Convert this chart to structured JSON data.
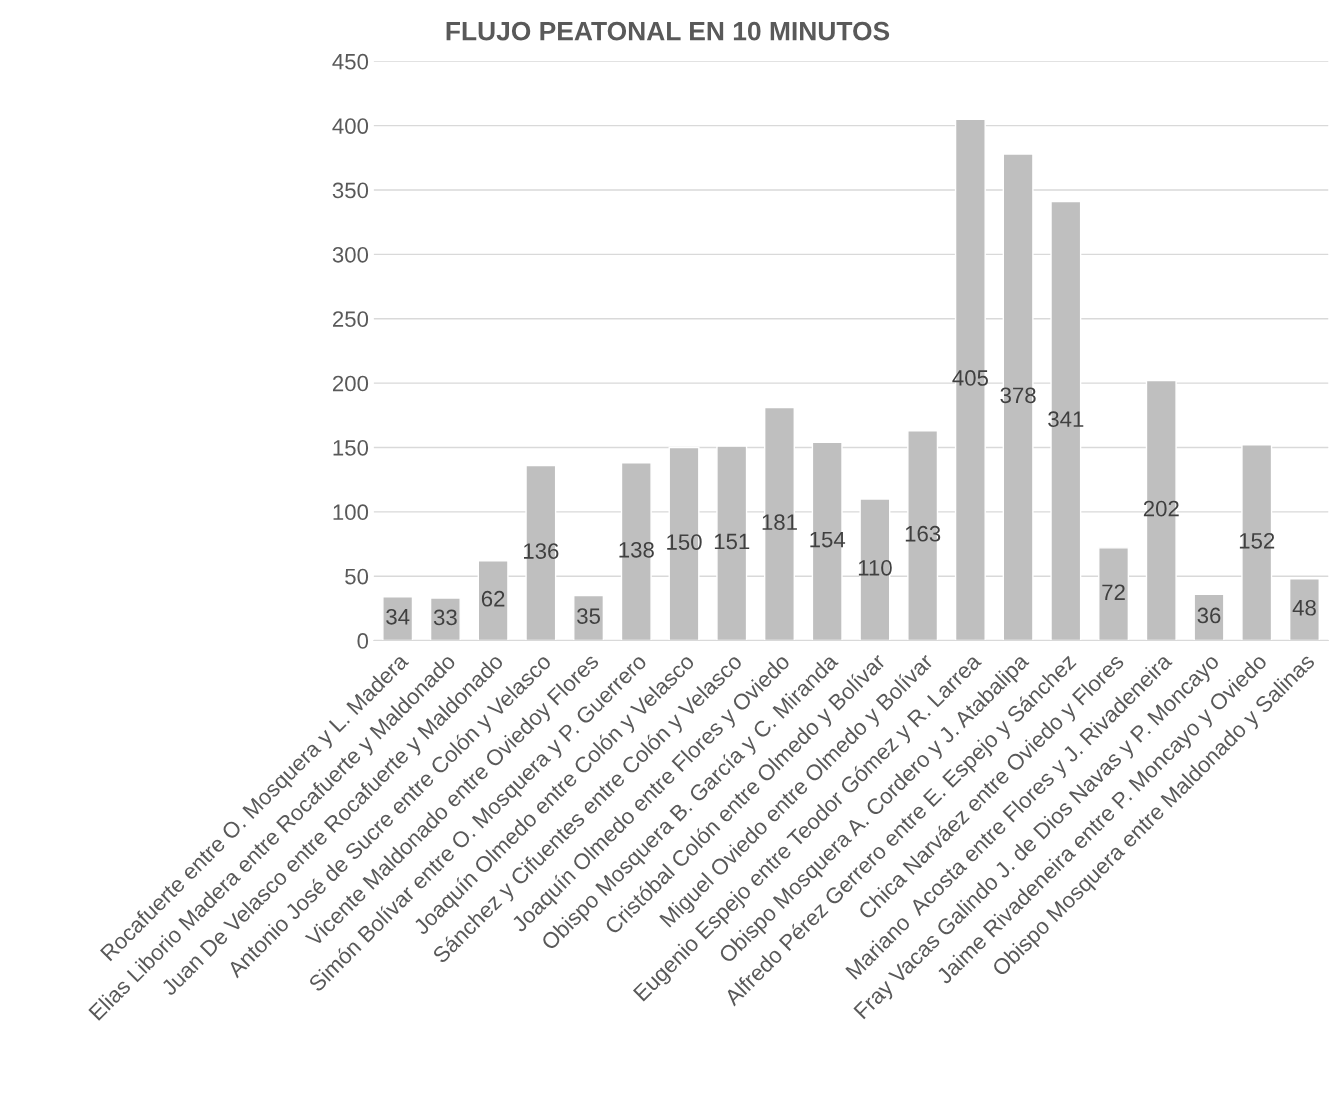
{
  "chart_data": {
    "type": "bar",
    "title": "FLUJO PEATONAL EN 10 MINUTOS",
    "categories": [
      "Rocafuerte entre O. Mosquera y L. Madera",
      "Elias Liborio Madera entre Rocafuerte y Maldonado",
      "Juan De Velasco entre Rocafuerte y Maldonado",
      "Antonio José de Sucre entre Colón y Velasco",
      "Vicente Maldonado entre Oviedoy Flores",
      "Simón Bolívar entre O. Mosquera y P. Guerrero",
      "Joaquín Olmedo entre Colón y Velasco",
      "Sánchez y Cifuentes entre Colón y Velasco",
      "Joaquín Olmedo entre Flores y Oviedo",
      "Obispo Mosquera B. García y C. Miranda",
      "Cristóbal Colón entre Olmedo y Bolívar",
      "Miguel Oviedo entre Olmedo y Bolívar",
      "Eugenio Espejo entre Teodor Gómez y R. Larrea",
      "Obispo Mosquera A. Cordero y J. Atabalipa",
      "Alfredo Pérez Gerrero entre E. Espejo y Sánchez",
      "Chica Narváez entre Oviedo y Flores",
      "Mariano  Acosta entre Flores y J. Rivadeneira",
      "Fray Vacas Galindo J. de Dios Navas y P. Moncayo",
      "Jaime Rivadeneira entre P. Moncayo y Oviedo",
      "Obispo Mosquera entre Maldonado y Salinas"
    ],
    "values": [
      34,
      33,
      62,
      136,
      35,
      138,
      150,
      151,
      181,
      154,
      110,
      163,
      405,
      378,
      341,
      72,
      202,
      36,
      152,
      48
    ],
    "color": "#bfbfbf",
    "ylim": [
      0,
      450
    ],
    "yticks": [
      0,
      50,
      100,
      150,
      200,
      250,
      300,
      350,
      400,
      450
    ],
    "grid": "y",
    "data_labels": true
  }
}
